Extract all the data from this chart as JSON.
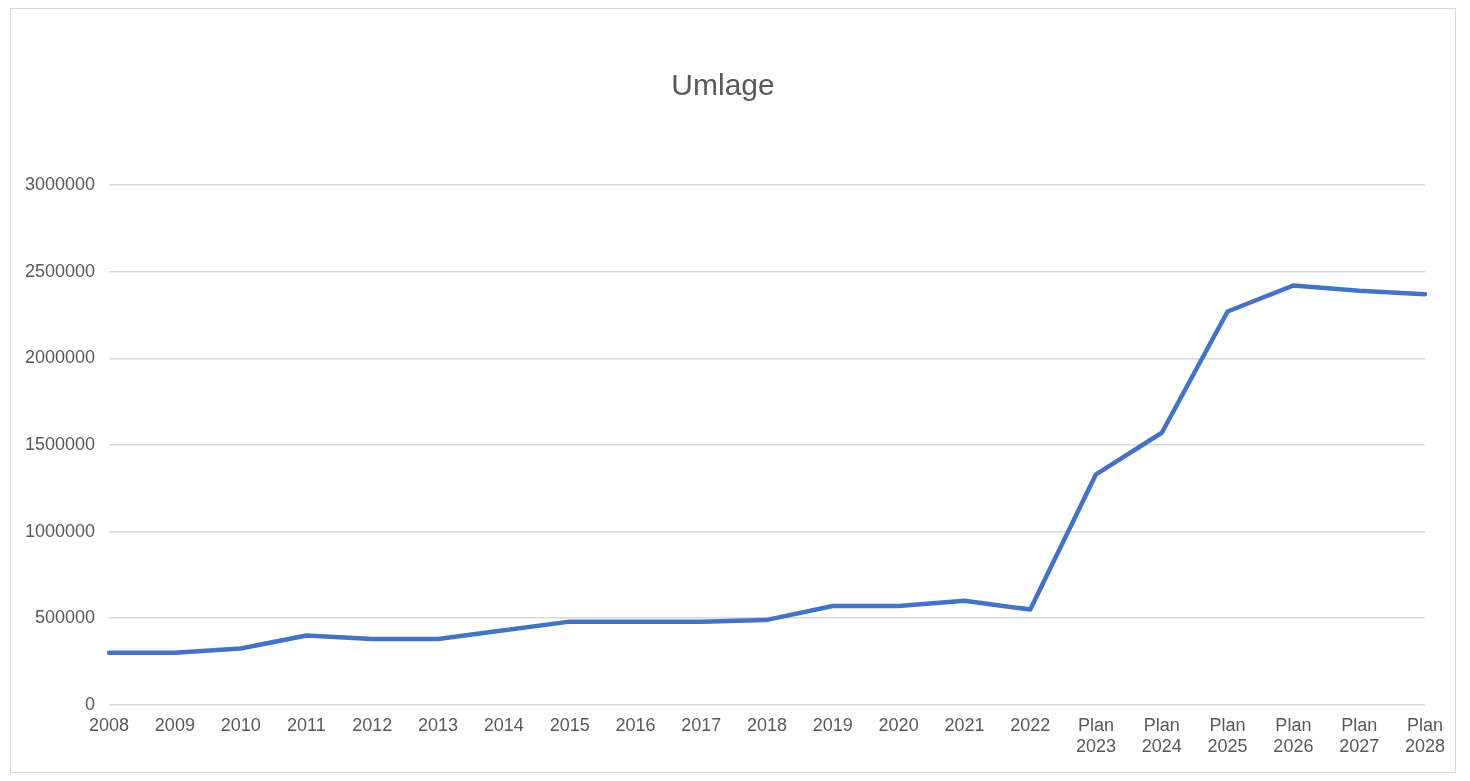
{
  "chart_data": {
    "type": "line",
    "title": "Umlage",
    "categories": [
      "2008",
      "2009",
      "2010",
      "2011",
      "2012",
      "2013",
      "2014",
      "2015",
      "2016",
      "2017",
      "2018",
      "2019",
      "2020",
      "2021",
      "2022",
      "Plan 2023",
      "Plan 2024",
      "Plan 2025",
      "Plan 2026",
      "Plan 2027",
      "Plan 2028"
    ],
    "series": [
      {
        "color": "#4472c4",
        "values": [
          300000,
          300000,
          325000,
          400000,
          380000,
          380000,
          430000,
          480000,
          480000,
          480000,
          490000,
          570000,
          570000,
          600000,
          550000,
          1330000,
          1570000,
          2270000,
          2420000,
          2390000,
          2370000
        ]
      }
    ],
    "ylim": [
      0,
      3000000
    ],
    "yticks": [
      0,
      500000,
      1000000,
      1500000,
      2000000,
      2500000,
      3000000
    ],
    "grid": "y",
    "legend": false,
    "marker": "none",
    "line_style": "solid"
  }
}
